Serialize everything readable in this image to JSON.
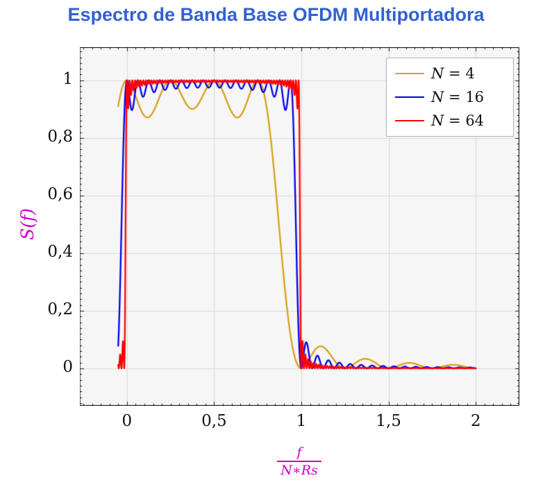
{
  "title": {
    "text": "Espectro de Banda Base OFDM Multiportadora",
    "color": "#3261d2"
  },
  "chart_data": {
    "type": "line",
    "title": "Espectro de Banda Base OFDM Multiportadora",
    "xlabel": {
      "numerator": "f",
      "denominator": "N∗Rs"
    },
    "ylabel": "S(f)",
    "axis_label_color": "#cc00cc",
    "plot_bg": "#f6f6f6",
    "grid_color": "#d9d9d9",
    "grid": true,
    "xlim": [
      -0.27,
      2.25
    ],
    "ylim": [
      -0.13,
      1.115
    ],
    "x_ticks": [
      0,
      0.5,
      1,
      1.5,
      2
    ],
    "x_tick_labels": [
      "0",
      "0,5",
      "1",
      "1,5",
      "2"
    ],
    "y_ticks": [
      0,
      0.2,
      0.4,
      0.6,
      0.8,
      1
    ],
    "y_tick_labels": [
      "0",
      "0,2",
      "0,4",
      "0,6",
      "0,8",
      "1"
    ],
    "x_minor_step": 0.05,
    "y_minor_step": 0.02,
    "legend_position": "top-right",
    "domain": [
      -0.05,
      2
    ],
    "samples": 2600,
    "formula": "S(x) = sum_{k=0..N-1} sinc^2(N*x - k), sinc(u)=sin(pi*u)/(pi*u), x = f/(N*Rs); flat ~1 over 0<=x<1, sidelobes decaying for x>1",
    "series": [
      {
        "label": "N = 4",
        "N": 4,
        "color": "#d8a018",
        "passband_ripple_min": 0.87,
        "first_sidelobe_peak": 0.07
      },
      {
        "label": "N = 16",
        "N": 16,
        "color": "#0000e6",
        "passband_ripple_min": 0.93,
        "first_sidelobe_peak": 0.03
      },
      {
        "label": "N = 64",
        "N": 64,
        "color": "#fe0000",
        "passband_ripple_min": 0.97,
        "first_sidelobe_peak": 0.02
      }
    ]
  }
}
